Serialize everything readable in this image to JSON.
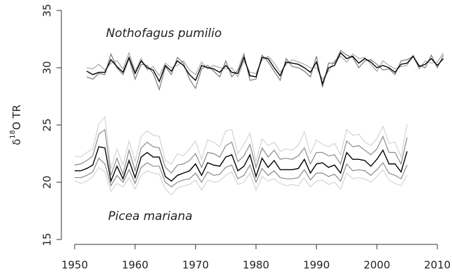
{
  "chart_data": {
    "type": "line",
    "ylabel": {
      "symbol": "δ",
      "superscript": "18",
      "text": "O TR"
    },
    "annotations": [
      "Nothofagus pumilio",
      "Picea mariana"
    ],
    "x": [
      1950,
      1951,
      1952,
      1953,
      1954,
      1955,
      1956,
      1957,
      1958,
      1959,
      1960,
      1961,
      1962,
      1963,
      1964,
      1965,
      1966,
      1967,
      1968,
      1969,
      1970,
      1971,
      1972,
      1973,
      1974,
      1975,
      1976,
      1977,
      1978,
      1979,
      1980,
      1981,
      1982,
      1983,
      1984,
      1985,
      1986,
      1987,
      1988,
      1989,
      1990,
      1991,
      1992,
      1993,
      1994,
      1995,
      1996,
      1997,
      1998,
      1999,
      2000,
      2001,
      2002,
      2003,
      2004,
      2005,
      2006,
      2007,
      2008,
      2009,
      2010,
      2011
    ],
    "xlim": [
      1948,
      2012
    ],
    "xticks": [
      1950,
      1960,
      1970,
      1980,
      1990,
      2000,
      2010
    ],
    "ylim": [
      15,
      35
    ],
    "yticks": [
      15,
      20,
      25,
      30,
      35
    ],
    "series": [
      {
        "color": "#d4d4d4",
        "values": [
          22.3,
          22.2,
          22.6,
          22.9,
          25.1,
          25.7,
          21.2,
          22.9,
          21.5,
          23.6,
          21.8,
          24.0,
          24.5,
          24.1,
          24.0,
          21.9,
          21.6,
          22.5,
          22.3,
          22.9,
          23.6,
          22.0,
          23.7,
          23.5,
          23.1,
          24.5,
          24.6,
          22.5,
          23.3,
          24.3,
          21.8,
          23.8,
          23.2,
          23.5,
          22.7,
          22.9,
          22.8,
          23.2,
          24.4,
          22.5,
          23.7,
          23.3,
          23.1,
          23.4,
          22.4,
          24.6,
          24.1,
          24.2,
          23.5,
          23.2,
          23.8,
          24.9,
          23.4,
          23.5,
          22.2,
          25.1,
          null,
          null,
          null,
          null,
          null,
          null
        ]
      },
      {
        "color": "#d4d4d4",
        "values": [
          20.1,
          19.9,
          20.1,
          20.5,
          21.3,
          20.9,
          19.2,
          19.9,
          19.6,
          20.4,
          19.4,
          20.6,
          21.0,
          20.8,
          20.7,
          19.4,
          18.9,
          19.5,
          19.7,
          19.8,
          20.2,
          19.3,
          20.2,
          20.0,
          20.1,
          20.6,
          20.9,
          19.8,
          20.0,
          20.8,
          19.3,
          20.5,
          20.1,
          20.3,
          19.9,
          19.7,
          19.8,
          19.7,
          20.4,
          19.6,
          20.1,
          20.2,
          19.8,
          20.0,
          19.4,
          20.8,
          20.3,
          20.4,
          20.3,
          20.0,
          20.5,
          21.1,
          20.2,
          19.9,
          19.7,
          20.6,
          null,
          null,
          null,
          null,
          null,
          null
        ]
      },
      {
        "color": "#8a8a8a",
        "values": [
          21.5,
          21.6,
          21.9,
          22.3,
          24.2,
          24.6,
          20.6,
          22.1,
          20.7,
          22.8,
          21.0,
          23.0,
          23.5,
          23.1,
          23.0,
          21.3,
          20.8,
          21.5,
          21.6,
          21.9,
          22.5,
          21.3,
          22.6,
          22.5,
          22.2,
          23.2,
          23.5,
          21.8,
          22.3,
          23.3,
          21.3,
          23.0,
          22.2,
          22.8,
          22.0,
          22.1,
          22.0,
          22.3,
          23.0,
          21.6,
          22.6,
          22.6,
          22.3,
          22.4,
          21.6,
          23.6,
          23.1,
          23.2,
          22.8,
          22.4,
          22.9,
          24.0,
          22.6,
          22.6,
          21.6,
          23.9,
          null,
          null,
          null,
          null,
          null,
          null
        ]
      },
      {
        "color": "#8a8a8a",
        "values": [
          20.4,
          20.4,
          20.6,
          20.9,
          22.1,
          21.6,
          19.7,
          20.6,
          20.0,
          21.1,
          19.9,
          21.3,
          21.7,
          21.4,
          21.4,
          20.0,
          19.6,
          20.0,
          20.2,
          20.3,
          20.8,
          20.0,
          20.9,
          20.6,
          20.7,
          21.3,
          21.5,
          20.3,
          20.6,
          21.5,
          20.0,
          21.2,
          20.6,
          21.0,
          20.4,
          20.3,
          20.3,
          20.4,
          21.1,
          20.2,
          20.8,
          20.8,
          20.5,
          20.7,
          20.1,
          21.6,
          21.0,
          21.1,
          21.0,
          20.6,
          21.1,
          21.7,
          20.8,
          20.6,
          20.3,
          21.5,
          null,
          null,
          null,
          null,
          null,
          null
        ]
      },
      {
        "color": "#000000",
        "values": [
          21.0,
          21.0,
          21.2,
          21.5,
          23.1,
          23.0,
          20.1,
          21.4,
          20.3,
          21.9,
          20.4,
          22.2,
          22.6,
          22.2,
          22.2,
          20.5,
          20.1,
          20.6,
          20.8,
          21.0,
          21.6,
          20.6,
          21.7,
          21.5,
          21.4,
          22.2,
          22.4,
          21.0,
          21.4,
          22.4,
          20.5,
          22.1,
          21.3,
          21.9,
          21.1,
          21.1,
          21.1,
          21.2,
          22.0,
          20.8,
          21.6,
          21.7,
          21.3,
          21.5,
          20.8,
          22.6,
          22.0,
          22.0,
          21.9,
          21.4,
          22.0,
          22.8,
          21.6,
          21.6,
          20.9,
          22.7,
          null,
          null,
          null,
          null,
          null,
          null
        ]
      },
      {
        "color": "#a8a8a8",
        "values": [
          null,
          null,
          30.0,
          29.9,
          30.3,
          29.8,
          30.4,
          30.6,
          29.9,
          31.3,
          29.7,
          30.8,
          29.8,
          30.1,
          29.3,
          30.4,
          30.0,
          30.2,
          30.6,
          29.8,
          29.4,
          30.5,
          29.9,
          30.2,
          30.0,
          29.9,
          30.0,
          29.2,
          30.6,
          29.6,
          29.5,
          30.7,
          31.0,
          30.4,
          29.6,
          30.3,
          30.7,
          30.5,
          30.3,
          30.0,
          30.0,
          29.0,
          29.7,
          30.6,
          31.0,
          30.5,
          31.2,
          30.8,
          30.9,
          30.3,
          29.7,
          30.6,
          30.2,
          29.9,
          30.1,
          30.2,
          31.1,
          29.9,
          30.6,
          30.4,
          30.5,
          31.3
        ]
      },
      {
        "color": "#7a7a7a",
        "values": [
          null,
          null,
          29.2,
          29.0,
          29.5,
          29.4,
          31.2,
          30.0,
          29.4,
          30.8,
          29.0,
          30.3,
          30.2,
          29.5,
          28.1,
          30.1,
          29.4,
          30.9,
          30.4,
          29.0,
          28.2,
          29.9,
          30.2,
          29.7,
          29.2,
          30.6,
          29.2,
          29.8,
          31.2,
          28.9,
          29.0,
          31.1,
          30.5,
          29.7,
          28.9,
          30.8,
          30.1,
          30.0,
          29.7,
          29.2,
          31.0,
          28.3,
          30.4,
          30.4,
          31.5,
          31.1,
          30.9,
          30.0,
          30.6,
          30.7,
          30.3,
          29.8,
          29.9,
          29.4,
          30.6,
          30.7,
          31.0,
          30.2,
          30.0,
          31.1,
          30.0,
          31.1
        ]
      },
      {
        "color": "#000000",
        "values": [
          null,
          null,
          29.7,
          29.4,
          29.6,
          29.6,
          30.7,
          30.1,
          29.6,
          30.9,
          29.5,
          30.6,
          30.0,
          29.8,
          28.8,
          30.2,
          29.7,
          30.6,
          30.2,
          29.4,
          28.9,
          30.2,
          30.0,
          29.9,
          29.6,
          30.2,
          29.6,
          29.5,
          30.9,
          29.3,
          29.2,
          30.9,
          30.8,
          30.0,
          29.3,
          30.5,
          30.4,
          30.3,
          30.0,
          29.6,
          30.5,
          28.6,
          30.0,
          30.2,
          31.3,
          30.8,
          31.0,
          30.4,
          30.8,
          30.5,
          30.0,
          30.2,
          30.0,
          29.6,
          30.3,
          30.4,
          31.0,
          30.1,
          30.3,
          30.8,
          30.2,
          30.8
        ]
      }
    ]
  }
}
